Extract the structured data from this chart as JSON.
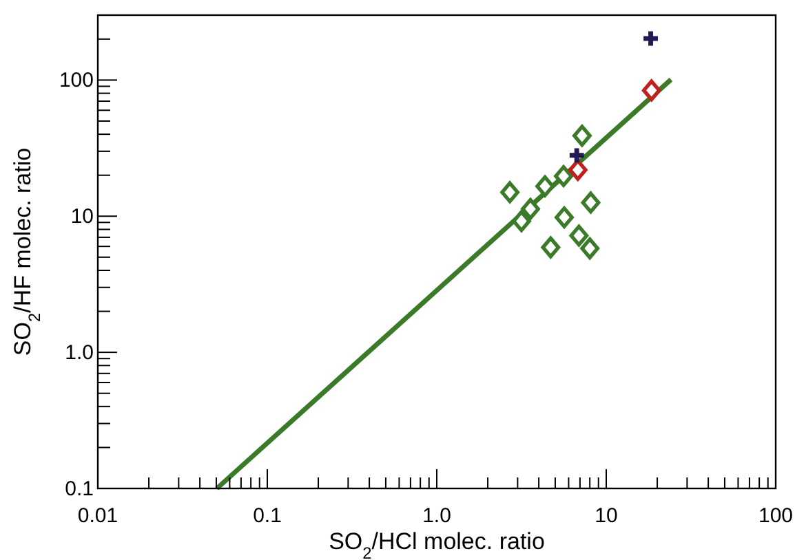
{
  "chart_data": {
    "type": "scatter",
    "xlabel": "SO$_{2}$/HCl molec. ratio",
    "ylabel": "SO$_{2}$/HF molec. ratio",
    "log": "xy",
    "grid": false,
    "xlim": [
      0.01,
      100
    ],
    "ylim": [
      0.1,
      300
    ],
    "xticks": [
      {
        "value": 0.01,
        "label": "0.01"
      },
      {
        "value": 0.02,
        "label": null
      },
      {
        "value": 0.03,
        "label": null
      },
      {
        "value": 0.04,
        "label": null
      },
      {
        "value": 0.05,
        "label": null
      },
      {
        "value": 0.06,
        "label": null
      },
      {
        "value": 0.07,
        "label": null
      },
      {
        "value": 0.08,
        "label": null
      },
      {
        "value": 0.09,
        "label": null
      },
      {
        "value": 0.1,
        "label": "0.1"
      },
      {
        "value": 0.2,
        "label": null
      },
      {
        "value": 0.3,
        "label": null
      },
      {
        "value": 0.4,
        "label": null
      },
      {
        "value": 0.5,
        "label": null
      },
      {
        "value": 0.6,
        "label": null
      },
      {
        "value": 0.7,
        "label": null
      },
      {
        "value": 0.8,
        "label": null
      },
      {
        "value": 0.9,
        "label": null
      },
      {
        "value": 1,
        "label": "1.0"
      },
      {
        "value": 2,
        "label": null
      },
      {
        "value": 3,
        "label": null
      },
      {
        "value": 4,
        "label": null
      },
      {
        "value": 5,
        "label": null
      },
      {
        "value": 6,
        "label": null
      },
      {
        "value": 7,
        "label": null
      },
      {
        "value": 8,
        "label": null
      },
      {
        "value": 9,
        "label": null
      },
      {
        "value": 10,
        "label": "10"
      },
      {
        "value": 20,
        "label": null
      },
      {
        "value": 30,
        "label": null
      },
      {
        "value": 40,
        "label": null
      },
      {
        "value": 50,
        "label": null
      },
      {
        "value": 60,
        "label": null
      },
      {
        "value": 70,
        "label": null
      },
      {
        "value": 80,
        "label": null
      },
      {
        "value": 90,
        "label": null
      },
      {
        "value": 100,
        "label": "100"
      }
    ],
    "yticks": [
      {
        "value": 0.1,
        "label": "0.1"
      },
      {
        "value": 0.2,
        "label": null
      },
      {
        "value": 0.3,
        "label": null
      },
      {
        "value": 0.4,
        "label": null
      },
      {
        "value": 0.5,
        "label": null
      },
      {
        "value": 0.6,
        "label": null
      },
      {
        "value": 0.7,
        "label": null
      },
      {
        "value": 0.8,
        "label": null
      },
      {
        "value": 0.9,
        "label": null
      },
      {
        "value": 1,
        "label": "1.0"
      },
      {
        "value": 2,
        "label": null
      },
      {
        "value": 3,
        "label": null
      },
      {
        "value": 4,
        "label": null
      },
      {
        "value": 5,
        "label": null
      },
      {
        "value": 6,
        "label": null
      },
      {
        "value": 7,
        "label": null
      },
      {
        "value": 8,
        "label": null
      },
      {
        "value": 9,
        "label": null
      },
      {
        "value": 10,
        "label": "10"
      },
      {
        "value": 20,
        "label": null
      },
      {
        "value": 30,
        "label": null
      },
      {
        "value": 40,
        "label": null
      },
      {
        "value": 50,
        "label": null
      },
      {
        "value": 60,
        "label": null
      },
      {
        "value": 70,
        "label": null
      },
      {
        "value": 80,
        "label": null
      },
      {
        "value": 90,
        "label": null
      },
      {
        "value": 100,
        "label": "100"
      },
      {
        "value": 200,
        "label": null
      }
    ],
    "series": [
      {
        "type": "line",
        "color": "#3a7a28",
        "marker": "none",
        "line_style": "solid",
        "x": [
          0.0504,
          24.1
        ],
        "values": [
          0.1,
          101
        ]
      },
      {
        "type": "scatter",
        "color": "#3a7a28",
        "marker": "diamond",
        "x": [
          2.7,
          3.16,
          3.57,
          4.35,
          5.6,
          7.2,
          8.1,
          5.65,
          4.7,
          6.9,
          8.0
        ],
        "values": [
          15,
          9.2,
          11.3,
          16.6,
          19.7,
          39,
          12.6,
          9.8,
          5.9,
          7.2,
          5.8
        ]
      },
      {
        "type": "scatter",
        "color": "#c0201e",
        "marker": "diamond",
        "x": [
          6.8,
          18.5
        ],
        "values": [
          21.9,
          84
        ]
      },
      {
        "type": "scatter",
        "color": "#231a55",
        "marker": "cross",
        "x": [
          6.7,
          18.3
        ],
        "values": [
          28,
          202
        ]
      }
    ]
  }
}
